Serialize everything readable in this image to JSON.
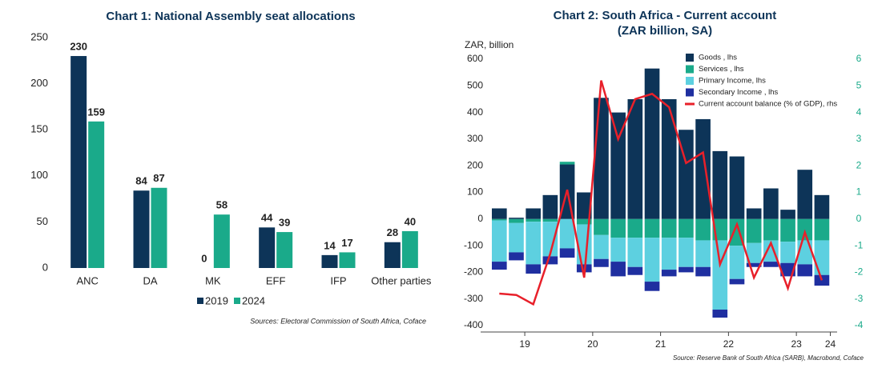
{
  "chart_data": [
    {
      "type": "bar",
      "title": "Chart 1: National Assembly seat allocations",
      "categories": [
        "ANC",
        "DA",
        "MK",
        "EFF",
        "IFP",
        "Other parties"
      ],
      "series": [
        {
          "name": "2019",
          "color": "#0d3458",
          "values": [
            230,
            84,
            0,
            44,
            14,
            28
          ]
        },
        {
          "name": "2024",
          "color": "#1aaa8a",
          "values": [
            159,
            87,
            58,
            39,
            17,
            40
          ]
        }
      ],
      "ylim": [
        0,
        250
      ],
      "yticks": [
        0,
        50,
        100,
        150,
        200,
        250
      ],
      "legend": "bottom",
      "source": "Sources: Electoral Commission of South Africa, Coface"
    },
    {
      "type": "stacked_bar_line",
      "title": "Chart 2: South Africa - Current account",
      "subtitle": "(ZAR billion, SA)",
      "ylabel": "ZAR, billion",
      "x": [
        2019.125,
        2019.375,
        2019.625,
        2019.875,
        2020.125,
        2020.375,
        2020.625,
        2020.875,
        2021.125,
        2021.375,
        2021.625,
        2021.875,
        2022.125,
        2022.375,
        2022.625,
        2022.875,
        2023.125,
        2023.375,
        2023.625,
        2023.875
      ],
      "series": [
        {
          "name": "Goods , lhs",
          "color": "#0d3458",
          "values": [
            40,
            5,
            40,
            90,
            205,
            100,
            455,
            400,
            450,
            565,
            450,
            335,
            375,
            255,
            235,
            40,
            115,
            35,
            185,
            90
          ]
        },
        {
          "name": "Services , lhs",
          "color": "#1aaa8a",
          "values": [
            -5,
            -15,
            -10,
            -10,
            10,
            -20,
            -60,
            -70,
            -70,
            -70,
            -70,
            -70,
            -80,
            -80,
            -100,
            -90,
            -80,
            -85,
            -80,
            -80
          ]
        },
        {
          "name": "Primary Income, lhs",
          "color": "#5dd0e0",
          "values": [
            -155,
            -110,
            -160,
            -130,
            -110,
            -150,
            -90,
            -90,
            -110,
            -165,
            -120,
            -110,
            -100,
            -260,
            -125,
            -75,
            -80,
            -80,
            -90,
            -130
          ]
        },
        {
          "name": "Secondary Income , lhs",
          "color": "#1f2fa0",
          "values": [
            -30,
            -30,
            -35,
            -30,
            -35,
            -30,
            -30,
            -55,
            -30,
            -35,
            -25,
            -20,
            -35,
            -30,
            -20,
            -15,
            -20,
            -50,
            -45,
            -40
          ]
        },
        {
          "name": "Current account balance (% of GDP), rhs",
          "color": "#e8202a",
          "axis": "y2",
          "values": [
            -2.8,
            -2.85,
            -3.2,
            -1.3,
            1.1,
            -2.2,
            5.2,
            3.0,
            4.5,
            4.7,
            4.2,
            2.1,
            2.5,
            -1.7,
            -0.2,
            -2.2,
            -0.9,
            -2.6,
            -0.5,
            -2.3
          ]
        }
      ],
      "xlim": [
        2018.85,
        2024.1
      ],
      "xticks": [
        {
          "value": 2019.5,
          "label": "19"
        },
        {
          "value": 2020.5,
          "label": "20"
        },
        {
          "value": 2021.5,
          "label": "21"
        },
        {
          "value": 2022.5,
          "label": "22"
        },
        {
          "value": 2023.5,
          "label": "23"
        },
        {
          "value": 2024,
          "label": "24"
        }
      ],
      "ylim": [
        -400,
        600
      ],
      "yticks": [
        -400,
        -300,
        -200,
        -100,
        0,
        100,
        200,
        300,
        400,
        500,
        600
      ],
      "y2lim": [
        -4,
        6
      ],
      "y2ticks": [
        -4,
        -3,
        -2,
        -1,
        0,
        1,
        2,
        3,
        4,
        5,
        6
      ],
      "y2color": "#1aaa8a",
      "legend": "top-right",
      "source": "Source: Reserve Bank of South Africa (SARB), Macrobond, Coface"
    }
  ]
}
